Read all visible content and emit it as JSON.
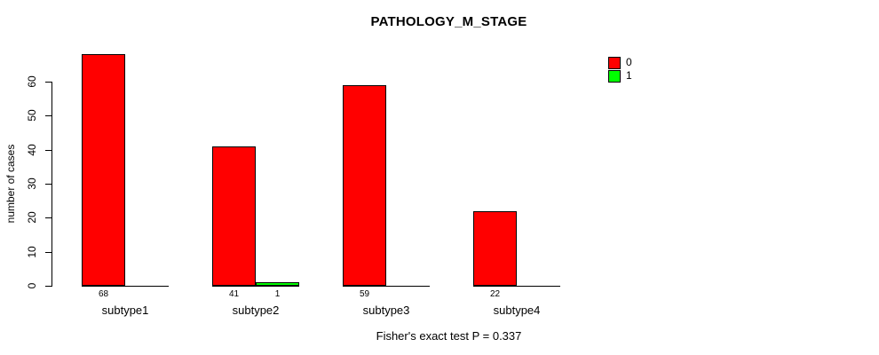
{
  "title": "PATHOLOGY_M_STAGE",
  "y_axis_label": "number of cases",
  "annotation": "Fisher's exact test P = 0.337",
  "legend": {
    "position": "top-right",
    "items": [
      {
        "label": "0",
        "color": "#ff0000"
      },
      {
        "label": "1",
        "color": "#00ff00"
      }
    ]
  },
  "chart_data": {
    "type": "bar",
    "title": "PATHOLOGY_M_STAGE",
    "xlabel": "",
    "ylabel": "number of cases",
    "categories": [
      "subtype1",
      "subtype2",
      "subtype3",
      "subtype4"
    ],
    "series": [
      {
        "name": "0",
        "color": "#ff0000",
        "values": [
          68,
          41,
          59,
          22
        ]
      },
      {
        "name": "1",
        "color": "#00ff00",
        "values": [
          0,
          1,
          0,
          0
        ]
      }
    ],
    "bar_value_labels": [
      "68",
      "41",
      "1",
      "59",
      "22"
    ],
    "yticks": [
      0,
      10,
      20,
      30,
      40,
      50,
      60
    ],
    "ylim": [
      0,
      60
    ],
    "grid": false,
    "legend_position": "top-right",
    "annotation": "Fisher's exact test P = 0.337"
  }
}
